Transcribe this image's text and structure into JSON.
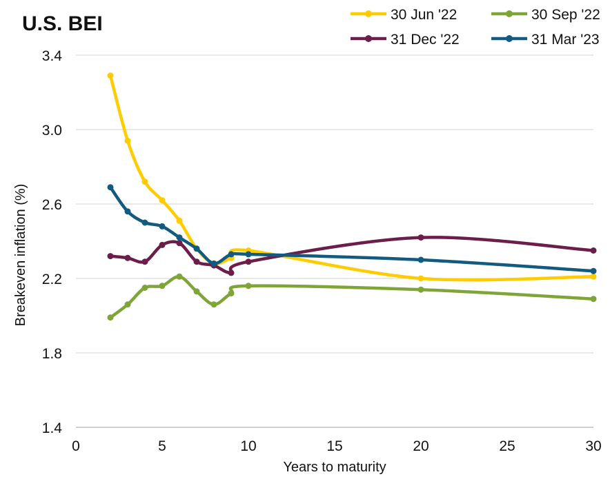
{
  "chart_data": {
    "type": "line",
    "title": "U.S. BEI",
    "xlabel": "Years to maturity",
    "ylabel": "Breakeven inflation (%)",
    "xlim": [
      0,
      30
    ],
    "ylim": [
      1.4,
      3.4
    ],
    "xticks": [
      "0",
      "5",
      "10",
      "15",
      "20",
      "25",
      "30"
    ],
    "yticks": [
      "1.4",
      "1.8",
      "2.2",
      "2.6",
      "3.0",
      "3.4"
    ],
    "grid": "horizontal",
    "legend_position": "top-right",
    "series": [
      {
        "name": "30 Jun '22",
        "color": "#FFCC00",
        "x": [
          2,
          3,
          4,
          5,
          6,
          7,
          8,
          9,
          10,
          20,
          30
        ],
        "y": [
          3.29,
          2.94,
          2.72,
          2.62,
          2.51,
          2.36,
          2.28,
          2.31,
          2.35,
          2.2,
          2.21
        ]
      },
      {
        "name": "30 Sep '22",
        "color": "#7FA539",
        "x": [
          2,
          3,
          4,
          5,
          6,
          7,
          8,
          9,
          10,
          20,
          30
        ],
        "y": [
          1.99,
          2.06,
          2.15,
          2.16,
          2.21,
          2.13,
          2.06,
          2.12,
          2.16,
          2.14,
          2.09
        ]
      },
      {
        "name": "31 Dec '22",
        "color": "#6B1E4A",
        "x": [
          2,
          3,
          4,
          5,
          6,
          7,
          8,
          9,
          10,
          20,
          30
        ],
        "y": [
          2.32,
          2.31,
          2.29,
          2.38,
          2.39,
          2.29,
          2.27,
          2.23,
          2.29,
          2.42,
          2.35
        ]
      },
      {
        "name": "31 Mar '23",
        "color": "#135A80",
        "x": [
          2,
          3,
          4,
          5,
          6,
          7,
          8,
          9,
          10,
          20,
          30
        ],
        "y": [
          2.69,
          2.56,
          2.5,
          2.48,
          2.42,
          2.36,
          2.28,
          2.33,
          2.33,
          2.3,
          2.24
        ]
      }
    ]
  }
}
